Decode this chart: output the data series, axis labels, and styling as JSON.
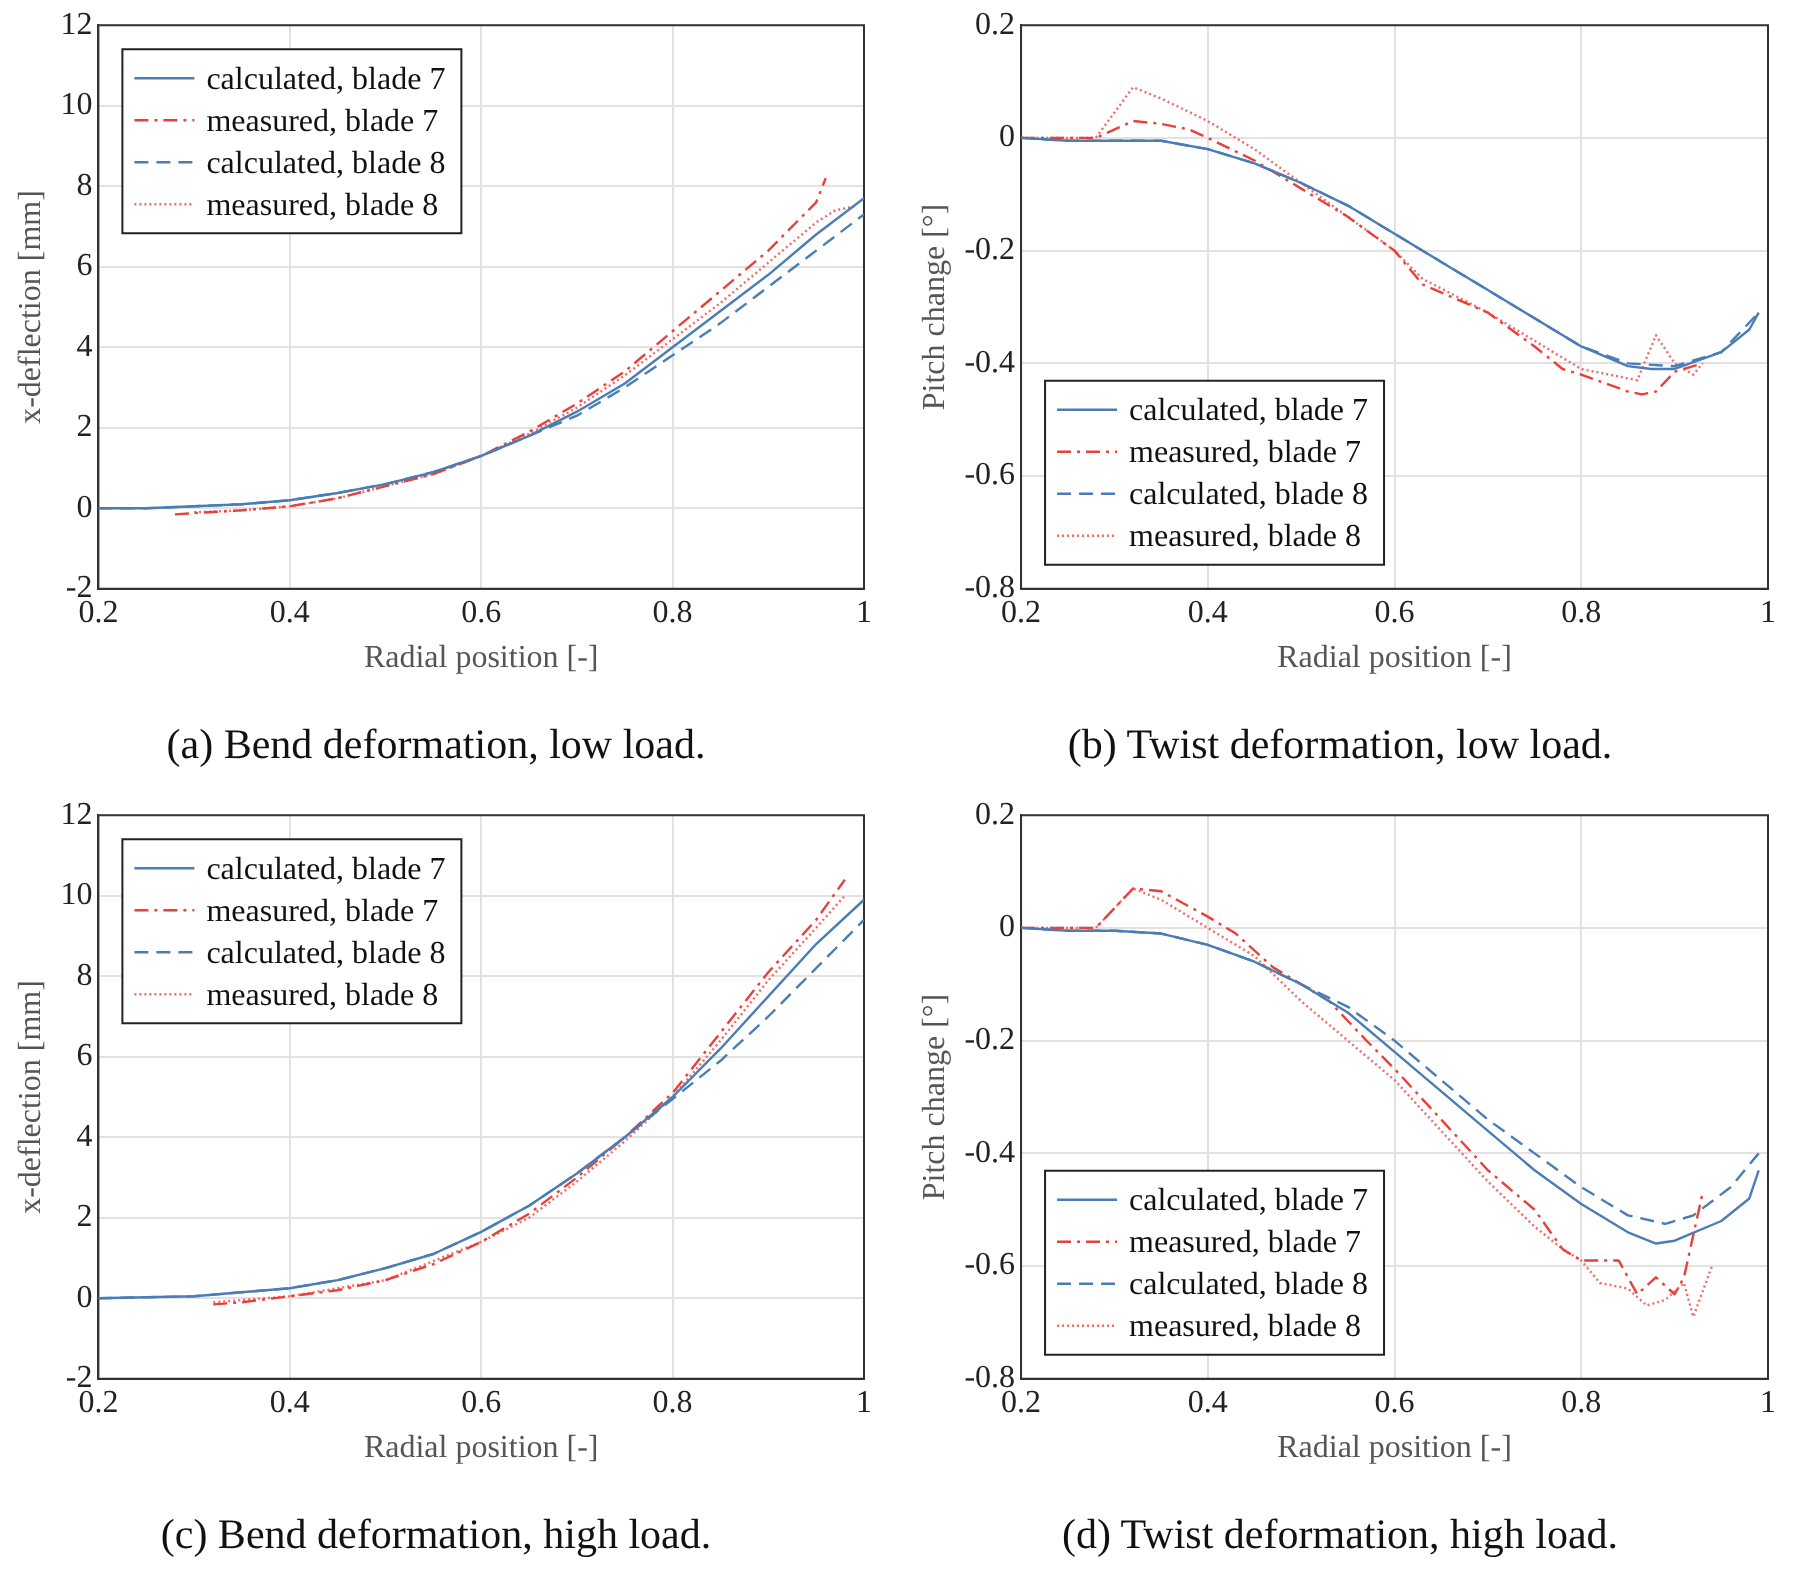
{
  "chart_data": [
    {
      "type": "line",
      "title": "(a) Bend deformation, low load.",
      "xlabel": "Radial position [-]",
      "ylabel": "x-deflection [mm]",
      "xlim": [
        0.2,
        1
      ],
      "xticks": [
        0.2,
        0.4,
        0.6,
        0.8,
        1
      ],
      "ylim": [
        -2,
        12
      ],
      "yticks": [
        -2,
        0,
        2,
        4,
        6,
        8,
        10,
        12
      ],
      "grid": true,
      "legend": "top left",
      "series": [
        {
          "name": "calculated, blade 7",
          "color": "#4a7db5",
          "line_style": "solid",
          "x": [
            0.2,
            0.25,
            0.3,
            0.35,
            0.4,
            0.45,
            0.5,
            0.55,
            0.6,
            0.65,
            0.7,
            0.75,
            0.8,
            0.85,
            0.9,
            0.95,
            1.0
          ],
          "values": [
            0,
            0,
            0.05,
            0.1,
            0.2,
            0.38,
            0.6,
            0.9,
            1.3,
            1.8,
            2.4,
            3.1,
            4.0,
            4.9,
            5.8,
            6.8,
            7.7
          ]
        },
        {
          "name": "measured, blade 7",
          "color": "#e8403a",
          "line_style": "dashdot",
          "x": [
            0.28,
            0.3,
            0.35,
            0.4,
            0.45,
            0.5,
            0.55,
            0.6,
            0.65,
            0.7,
            0.75,
            0.8,
            0.85,
            0.9,
            0.95,
            0.96
          ],
          "values": [
            -0.15,
            -0.12,
            -0.05,
            0.05,
            0.25,
            0.55,
            0.85,
            1.3,
            1.9,
            2.6,
            3.4,
            4.4,
            5.4,
            6.4,
            7.6,
            8.2
          ]
        },
        {
          "name": "calculated, blade 8",
          "color": "#4a7db5",
          "line_style": "dashed",
          "x": [
            0.2,
            0.25,
            0.3,
            0.35,
            0.4,
            0.45,
            0.5,
            0.55,
            0.6,
            0.65,
            0.7,
            0.75,
            0.8,
            0.85,
            0.9,
            0.95,
            1.0
          ],
          "values": [
            0,
            0,
            0.05,
            0.1,
            0.2,
            0.38,
            0.6,
            0.9,
            1.3,
            1.8,
            2.3,
            3.0,
            3.8,
            4.6,
            5.5,
            6.4,
            7.3
          ]
        },
        {
          "name": "measured, blade 8",
          "color": "#ef6b66",
          "line_style": "dotted",
          "x": [
            0.3,
            0.35,
            0.4,
            0.45,
            0.5,
            0.55,
            0.6,
            0.65,
            0.7,
            0.75,
            0.8,
            0.85,
            0.9,
            0.95,
            0.97,
            0.99
          ],
          "values": [
            -0.1,
            -0.05,
            0.05,
            0.25,
            0.55,
            0.85,
            1.3,
            1.85,
            2.5,
            3.3,
            4.2,
            5.1,
            6.1,
            7.1,
            7.4,
            7.5
          ]
        }
      ]
    },
    {
      "type": "line",
      "title": "(b) Twist deformation, low load.",
      "xlabel": "Radial position [-]",
      "ylabel": "Pitch change [°]",
      "xlim": [
        0.2,
        1
      ],
      "xticks": [
        0.2,
        0.4,
        0.6,
        0.8,
        1
      ],
      "ylim": [
        -0.8,
        0.2
      ],
      "yticks": [
        -0.8,
        -0.6,
        -0.4,
        -0.2,
        0,
        0.2
      ],
      "grid": true,
      "legend": "bottom left",
      "series": [
        {
          "name": "calculated, blade 7",
          "color": "#4a7db5",
          "line_style": "solid",
          "x": [
            0.2,
            0.25,
            0.3,
            0.35,
            0.4,
            0.45,
            0.5,
            0.55,
            0.6,
            0.65,
            0.7,
            0.75,
            0.8,
            0.85,
            0.875,
            0.9,
            0.95,
            0.98,
            0.99
          ],
          "values": [
            0,
            -0.005,
            -0.005,
            -0.005,
            -0.02,
            -0.045,
            -0.08,
            -0.12,
            -0.17,
            -0.22,
            -0.27,
            -0.32,
            -0.37,
            -0.405,
            -0.41,
            -0.41,
            -0.38,
            -0.34,
            -0.31
          ]
        },
        {
          "name": "measured, blade 7",
          "color": "#e8403a",
          "line_style": "dashdot",
          "x": [
            0.2,
            0.28,
            0.32,
            0.35,
            0.38,
            0.4,
            0.45,
            0.5,
            0.55,
            0.6,
            0.63,
            0.7,
            0.75,
            0.78,
            0.8,
            0.85,
            0.865,
            0.88,
            0.9,
            0.93
          ],
          "values": [
            0,
            0,
            0.03,
            0.025,
            0.015,
            0,
            -0.04,
            -0.09,
            -0.14,
            -0.2,
            -0.26,
            -0.31,
            -0.37,
            -0.41,
            -0.42,
            -0.45,
            -0.455,
            -0.45,
            -0.415,
            -0.4
          ]
        },
        {
          "name": "calculated, blade 8",
          "color": "#4a7db5",
          "line_style": "dashed",
          "x": [
            0.2,
            0.25,
            0.3,
            0.35,
            0.4,
            0.45,
            0.5,
            0.55,
            0.6,
            0.65,
            0.7,
            0.75,
            0.8,
            0.85,
            0.9,
            0.95,
            0.99
          ],
          "values": [
            0,
            -0.005,
            -0.005,
            -0.005,
            -0.02,
            -0.045,
            -0.08,
            -0.12,
            -0.17,
            -0.22,
            -0.27,
            -0.32,
            -0.37,
            -0.4,
            -0.405,
            -0.38,
            -0.31
          ]
        },
        {
          "name": "measured, blade 8",
          "color": "#ef6b66",
          "line_style": "dotted",
          "x": [
            0.2,
            0.28,
            0.32,
            0.35,
            0.4,
            0.45,
            0.5,
            0.55,
            0.6,
            0.63,
            0.7,
            0.75,
            0.78,
            0.8,
            0.83,
            0.86,
            0.88,
            0.9,
            0.92,
            0.93
          ],
          "values": [
            0,
            0,
            0.09,
            0.07,
            0.03,
            -0.02,
            -0.08,
            -0.14,
            -0.2,
            -0.25,
            -0.31,
            -0.36,
            -0.39,
            -0.41,
            -0.42,
            -0.43,
            -0.35,
            -0.4,
            -0.42,
            -0.4
          ]
        }
      ]
    },
    {
      "type": "line",
      "title": "(c) Bend deformation, high load.",
      "xlabel": "Radial position [-]",
      "ylabel": "x-deflection [mm]",
      "xlim": [
        0.2,
        1
      ],
      "xticks": [
        0.2,
        0.4,
        0.6,
        0.8,
        1
      ],
      "ylim": [
        -2,
        12
      ],
      "yticks": [
        -2,
        0,
        2,
        4,
        6,
        8,
        10,
        12
      ],
      "grid": true,
      "legend": "top left",
      "series": [
        {
          "name": "calculated, blade 7",
          "color": "#4a7db5",
          "line_style": "solid",
          "x": [
            0.2,
            0.3,
            0.4,
            0.45,
            0.5,
            0.55,
            0.6,
            0.65,
            0.7,
            0.75,
            0.8,
            0.85,
            0.9,
            0.95,
            1.0
          ],
          "values": [
            0,
            0.05,
            0.25,
            0.45,
            0.75,
            1.1,
            1.65,
            2.3,
            3.1,
            4.0,
            5.0,
            6.2,
            7.5,
            8.8,
            9.9
          ]
        },
        {
          "name": "measured, blade 7",
          "color": "#e8403a",
          "line_style": "dashdot",
          "x": [
            0.32,
            0.35,
            0.4,
            0.45,
            0.5,
            0.55,
            0.6,
            0.65,
            0.7,
            0.75,
            0.8,
            0.85,
            0.9,
            0.95,
            0.98
          ],
          "values": [
            -0.15,
            -0.1,
            0.05,
            0.2,
            0.45,
            0.85,
            1.4,
            2.1,
            3.0,
            4.0,
            5.1,
            6.6,
            8.1,
            9.4,
            10.4
          ]
        },
        {
          "name": "calculated, blade 8",
          "color": "#4a7db5",
          "line_style": "dashed",
          "x": [
            0.2,
            0.3,
            0.4,
            0.45,
            0.5,
            0.55,
            0.6,
            0.65,
            0.7,
            0.75,
            0.8,
            0.85,
            0.9,
            0.95,
            1.0
          ],
          "values": [
            0,
            0.05,
            0.25,
            0.45,
            0.75,
            1.1,
            1.65,
            2.3,
            3.1,
            4.0,
            4.95,
            5.9,
            7.0,
            8.2,
            9.4
          ]
        },
        {
          "name": "measured, blade 8",
          "color": "#ef6b66",
          "line_style": "dotted",
          "x": [
            0.32,
            0.4,
            0.5,
            0.6,
            0.65,
            0.7,
            0.75,
            0.8,
            0.85,
            0.9,
            0.95,
            0.98
          ],
          "values": [
            -0.1,
            0.05,
            0.45,
            1.4,
            2.0,
            2.9,
            3.9,
            5.0,
            6.4,
            7.9,
            9.2,
            10.0
          ]
        }
      ]
    },
    {
      "type": "line",
      "title": "(d) Twist deformation, high load.",
      "xlabel": "Radial position [-]",
      "ylabel": "Pitch change [°]",
      "xlim": [
        0.2,
        1
      ],
      "xticks": [
        0.2,
        0.4,
        0.6,
        0.8,
        1
      ],
      "ylim": [
        -0.8,
        0.2
      ],
      "yticks": [
        -0.8,
        -0.6,
        -0.4,
        -0.2,
        0,
        0.2
      ],
      "grid": true,
      "legend": "bottom left",
      "series": [
        {
          "name": "calculated, blade 7",
          "color": "#4a7db5",
          "line_style": "solid",
          "x": [
            0.2,
            0.25,
            0.3,
            0.35,
            0.4,
            0.45,
            0.5,
            0.55,
            0.6,
            0.65,
            0.7,
            0.75,
            0.8,
            0.85,
            0.88,
            0.9,
            0.95,
            0.98,
            0.99
          ],
          "values": [
            0,
            -0.005,
            -0.005,
            -0.01,
            -0.03,
            -0.06,
            -0.1,
            -0.15,
            -0.22,
            -0.29,
            -0.36,
            -0.43,
            -0.49,
            -0.54,
            -0.56,
            -0.555,
            -0.52,
            -0.48,
            -0.43
          ]
        },
        {
          "name": "measured, blade 7",
          "color": "#e8403a",
          "line_style": "dashdot",
          "x": [
            0.2,
            0.28,
            0.32,
            0.35,
            0.4,
            0.43,
            0.47,
            0.5,
            0.53,
            0.57,
            0.6,
            0.65,
            0.7,
            0.75,
            0.78,
            0.8,
            0.84,
            0.86,
            0.88,
            0.9,
            0.91,
            0.93
          ],
          "values": [
            0,
            0,
            0.07,
            0.065,
            0.02,
            -0.01,
            -0.07,
            -0.1,
            -0.13,
            -0.2,
            -0.25,
            -0.34,
            -0.43,
            -0.5,
            -0.57,
            -0.59,
            -0.59,
            -0.65,
            -0.62,
            -0.65,
            -0.62,
            -0.47
          ]
        },
        {
          "name": "calculated, blade 8",
          "color": "#4a7db5",
          "line_style": "dashed",
          "x": [
            0.2,
            0.25,
            0.3,
            0.35,
            0.4,
            0.45,
            0.5,
            0.55,
            0.6,
            0.65,
            0.7,
            0.75,
            0.8,
            0.85,
            0.89,
            0.92,
            0.96,
            0.99
          ],
          "values": [
            0,
            -0.005,
            -0.005,
            -0.01,
            -0.03,
            -0.06,
            -0.1,
            -0.14,
            -0.2,
            -0.27,
            -0.34,
            -0.4,
            -0.46,
            -0.51,
            -0.525,
            -0.51,
            -0.46,
            -0.4
          ]
        },
        {
          "name": "measured, blade 8",
          "color": "#ef6b66",
          "line_style": "dotted",
          "x": [
            0.2,
            0.28,
            0.32,
            0.35,
            0.4,
            0.45,
            0.5,
            0.55,
            0.6,
            0.65,
            0.7,
            0.75,
            0.78,
            0.8,
            0.82,
            0.85,
            0.87,
            0.89,
            0.91,
            0.92,
            0.94
          ],
          "values": [
            0,
            0,
            0.07,
            0.05,
            0,
            -0.05,
            -0.13,
            -0.2,
            -0.27,
            -0.36,
            -0.45,
            -0.53,
            -0.57,
            -0.59,
            -0.63,
            -0.64,
            -0.67,
            -0.66,
            -0.63,
            -0.69,
            -0.6
          ]
        }
      ]
    }
  ]
}
